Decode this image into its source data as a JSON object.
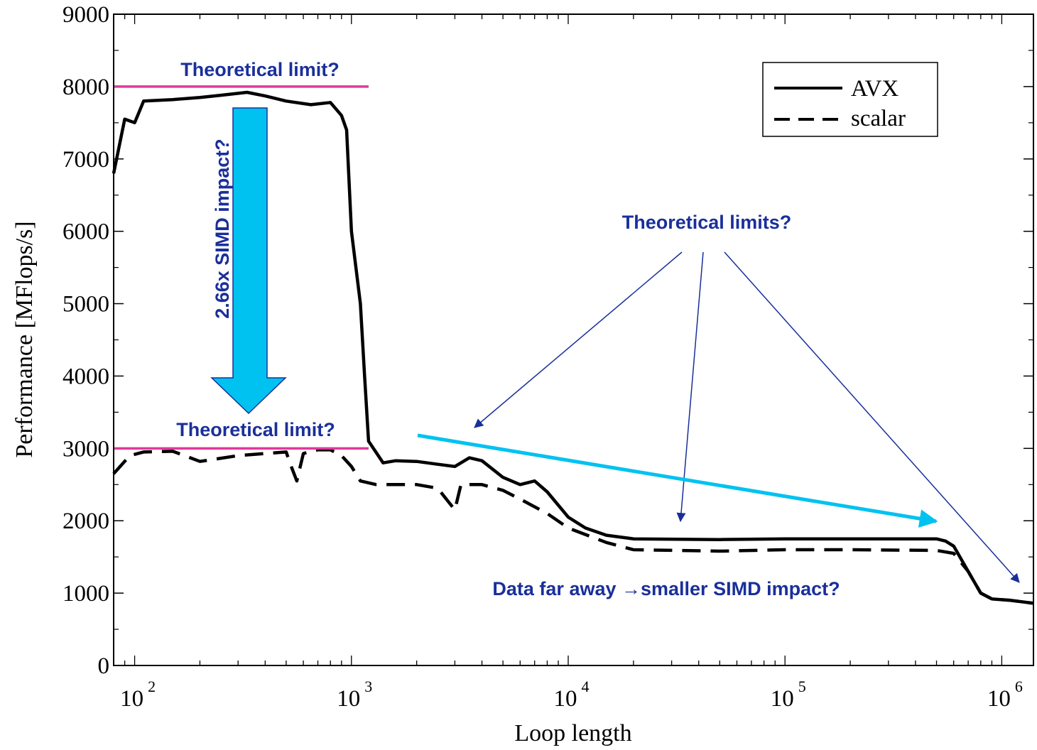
{
  "chart_data": {
    "type": "line",
    "xscale": "log",
    "xlim": [
      80,
      1400000
    ],
    "ylim": [
      0,
      9000
    ],
    "xlabel": "Loop length",
    "ylabel": "Performance [MFlops/s]",
    "y_ticks": [
      0,
      1000,
      2000,
      3000,
      4000,
      5000,
      6000,
      7000,
      8000,
      9000
    ],
    "x_ticks": [
      {
        "value": 100,
        "base": "10",
        "exp": "2"
      },
      {
        "value": 1000,
        "base": "10",
        "exp": "3"
      },
      {
        "value": 10000,
        "base": "10",
        "exp": "4"
      },
      {
        "value": 100000,
        "base": "10",
        "exp": "5"
      },
      {
        "value": 1000000,
        "base": "10",
        "exp": "6"
      }
    ],
    "legend": {
      "position": "top-right"
    },
    "series": [
      {
        "name": "AVX",
        "style": "solid",
        "points": [
          [
            80,
            6800
          ],
          [
            90,
            7550
          ],
          [
            100,
            7500
          ],
          [
            110,
            7800
          ],
          [
            150,
            7820
          ],
          [
            200,
            7850
          ],
          [
            250,
            7880
          ],
          [
            330,
            7920
          ],
          [
            400,
            7870
          ],
          [
            500,
            7800
          ],
          [
            650,
            7750
          ],
          [
            800,
            7780
          ],
          [
            900,
            7600
          ],
          [
            950,
            7400
          ],
          [
            1000,
            6000
          ],
          [
            1100,
            5000
          ],
          [
            1150,
            4000
          ],
          [
            1200,
            3100
          ],
          [
            1400,
            2800
          ],
          [
            1600,
            2830
          ],
          [
            2000,
            2820
          ],
          [
            2500,
            2780
          ],
          [
            3000,
            2750
          ],
          [
            3500,
            2870
          ],
          [
            4000,
            2830
          ],
          [
            5000,
            2600
          ],
          [
            6000,
            2500
          ],
          [
            7000,
            2550
          ],
          [
            8000,
            2400
          ],
          [
            10000,
            2050
          ],
          [
            12000,
            1900
          ],
          [
            15000,
            1800
          ],
          [
            20000,
            1750
          ],
          [
            50000,
            1740
          ],
          [
            100000,
            1750
          ],
          [
            200000,
            1750
          ],
          [
            500000,
            1750
          ],
          [
            550000,
            1720
          ],
          [
            600000,
            1650
          ],
          [
            700000,
            1300
          ],
          [
            800000,
            1000
          ],
          [
            900000,
            920
          ],
          [
            1100000,
            900
          ],
          [
            1400000,
            860
          ]
        ]
      },
      {
        "name": "scalar",
        "style": "dashed",
        "points": [
          [
            80,
            2650
          ],
          [
            95,
            2900
          ],
          [
            110,
            2950
          ],
          [
            150,
            2960
          ],
          [
            200,
            2820
          ],
          [
            300,
            2900
          ],
          [
            400,
            2930
          ],
          [
            500,
            2950
          ],
          [
            520,
            2800
          ],
          [
            560,
            2550
          ],
          [
            600,
            2930
          ],
          [
            700,
            2980
          ],
          [
            800,
            2980
          ],
          [
            900,
            2900
          ],
          [
            1000,
            2750
          ],
          [
            1100,
            2550
          ],
          [
            1300,
            2500
          ],
          [
            2000,
            2500
          ],
          [
            2500,
            2450
          ],
          [
            3000,
            2150
          ],
          [
            3200,
            2500
          ],
          [
            4000,
            2500
          ],
          [
            5000,
            2420
          ],
          [
            6000,
            2300
          ],
          [
            8000,
            2100
          ],
          [
            10000,
            1900
          ],
          [
            15000,
            1700
          ],
          [
            20000,
            1600
          ],
          [
            50000,
            1580
          ],
          [
            100000,
            1600
          ],
          [
            200000,
            1600
          ],
          [
            500000,
            1590
          ],
          [
            600000,
            1550
          ],
          [
            700000,
            1300
          ],
          [
            800000,
            1000
          ],
          [
            900000,
            920
          ],
          [
            1100000,
            900
          ],
          [
            1400000,
            860
          ]
        ]
      }
    ],
    "reference_lines": [
      {
        "y": 8000,
        "x_from": 80,
        "x_to": 1200,
        "color": "#e0399a",
        "label": "Theoretical limit?"
      },
      {
        "y": 3000,
        "x_from": 80,
        "x_to": 1200,
        "color": "#e0399a",
        "label": "Theoretical limit?"
      }
    ],
    "annotations": {
      "simd_arrow_label": "2.66x SIMD impact?",
      "limits_label": "Theoretical limits?",
      "far_label": "Data far away →smaller SIMD impact?"
    },
    "colors": {
      "highlight": "#00c2f0",
      "annotation_text": "#1a2f9a",
      "limit_line": "#e0399a"
    }
  }
}
